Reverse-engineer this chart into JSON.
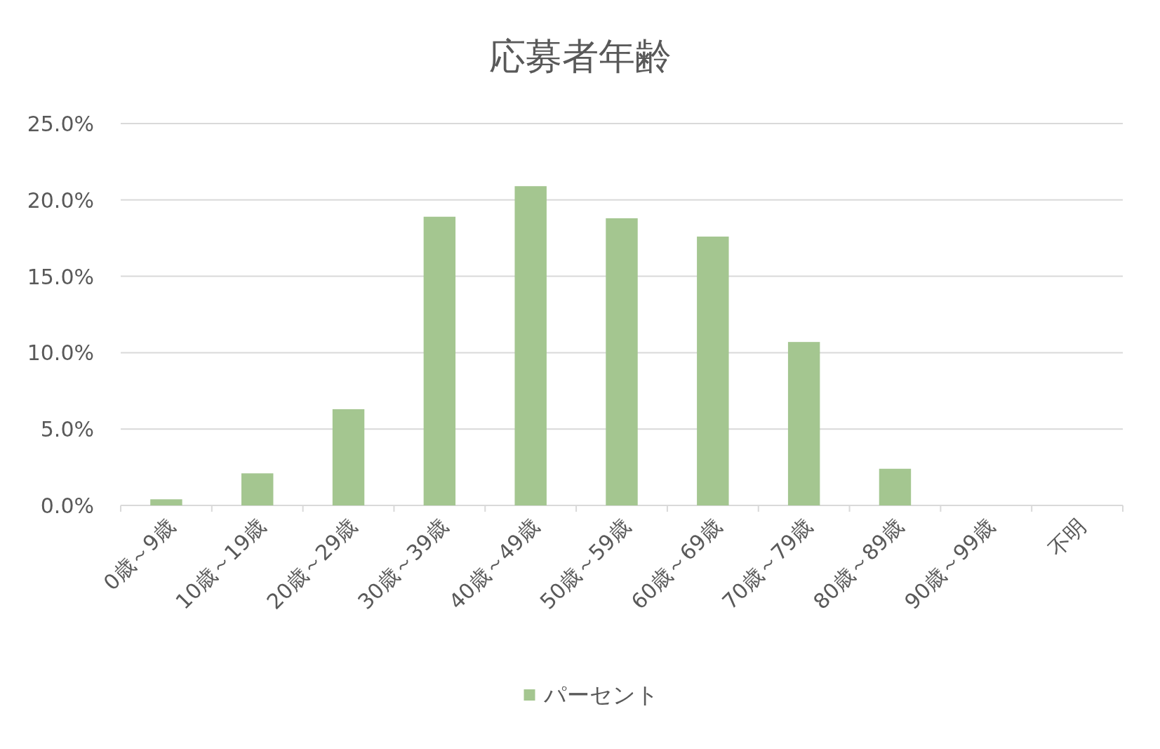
{
  "chart_data": {
    "type": "bar",
    "title": "応募者年齢",
    "categories": [
      "0歳～9歳",
      "10歳～19歳",
      "20歳～29歳",
      "30歳～39歳",
      "40歳～49歳",
      "50歳～59歳",
      "60歳～69歳",
      "70歳～79歳",
      "80歳～89歳",
      "90歳～99歳",
      "不明"
    ],
    "series": [
      {
        "name": "パーセント",
        "color": "#a4c690",
        "values": [
          0.4,
          2.1,
          6.3,
          18.9,
          20.9,
          18.8,
          17.6,
          10.7,
          2.4,
          0,
          0
        ]
      }
    ],
    "ylim": [
      0,
      25
    ],
    "yticks": [
      {
        "value": 0,
        "label": "0.0%"
      },
      {
        "value": 5,
        "label": "5.0%"
      },
      {
        "value": 10,
        "label": "10.0%"
      },
      {
        "value": 15,
        "label": "15.0%"
      },
      {
        "value": 20,
        "label": "20.0%"
      },
      {
        "value": 25,
        "label": "25.0%"
      }
    ],
    "grid": "y",
    "legend": "bottom"
  }
}
